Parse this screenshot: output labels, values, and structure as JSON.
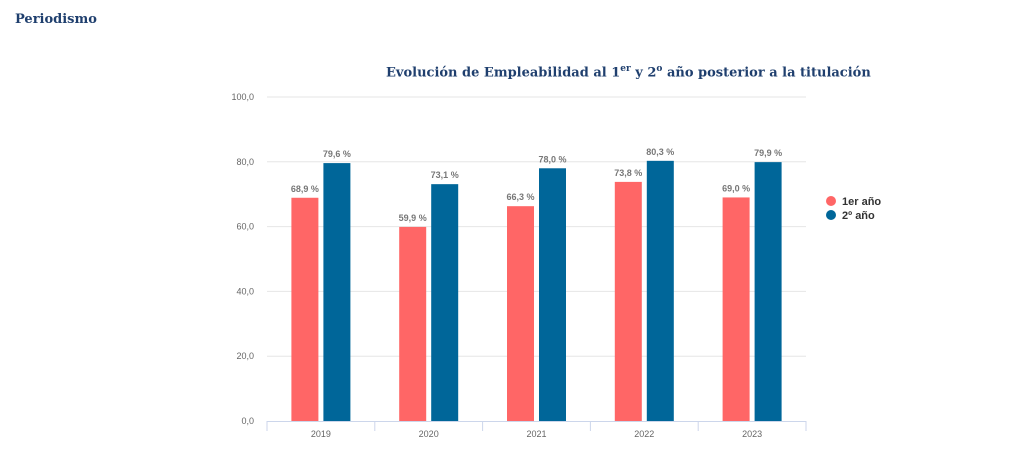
{
  "page": {
    "title": "Periodismo"
  },
  "chart_data": {
    "type": "bar",
    "title_parts": {
      "a": "Evolución de Empleabilidad al 1",
      "sup1": "er",
      "b": " y 2",
      "sup2": "o",
      "c": " año posterior a la titulación"
    },
    "categories": [
      "2019",
      "2020",
      "2021",
      "2022",
      "2023"
    ],
    "series": [
      {
        "name": "1er año",
        "color": "#ff6666",
        "values": [
          68.9,
          59.9,
          66.3,
          73.8,
          69.0
        ],
        "labels": [
          "68,9 %",
          "59,9 %",
          "66,3 %",
          "73,8 %",
          "69,0 %"
        ]
      },
      {
        "name": "2º año",
        "color": "#006699",
        "values": [
          79.6,
          73.1,
          78.0,
          80.3,
          79.9
        ],
        "labels": [
          "79,6 %",
          "73,1 %",
          "78,0 %",
          "80,3 %",
          "79,9 %"
        ]
      }
    ],
    "ylim": [
      0,
      100
    ],
    "yticks": [
      0,
      20,
      40,
      60,
      80,
      100
    ],
    "ytick_labels": [
      "0,0",
      "20,0",
      "40,0",
      "60,0",
      "80,0",
      "100,0"
    ],
    "grid": true,
    "legend": "right"
  }
}
